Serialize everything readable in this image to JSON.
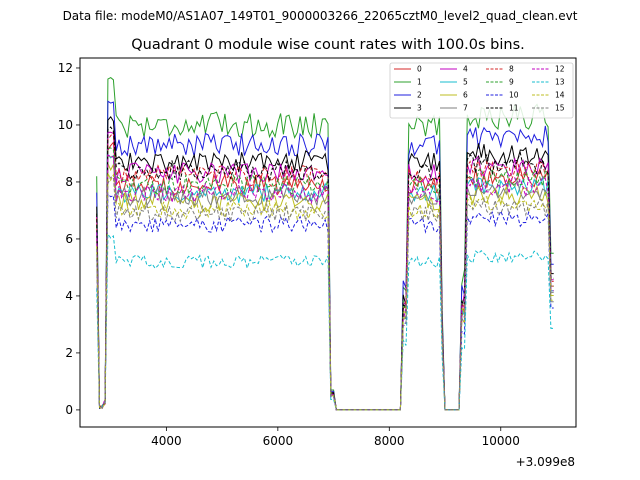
{
  "suptitle": "Data file: modeM0/AS1A07_149T01_9000003266_22065cztM0_level2_quad_clean.evt",
  "chart_data": {
    "type": "line",
    "title": "Quadrant 0 module wise count rates with 100.0s bins.",
    "xlabel": "",
    "ylabel": "",
    "x_offset_label": "+3.099e8",
    "xlim": [
      2450,
      11350
    ],
    "ylim": [
      -0.6,
      12.35
    ],
    "x_ticks": [
      4000,
      6000,
      8000,
      10000
    ],
    "x_tick_labels": [
      "4000",
      "6000",
      "8000",
      "10000"
    ],
    "y_ticks": [
      0,
      2,
      4,
      6,
      8,
      10,
      12
    ],
    "y_tick_labels": [
      "0",
      "2",
      "4",
      "6",
      "8",
      "10",
      "12"
    ],
    "legend_position": "top-right",
    "segments": [
      {
        "x_start": 2750,
        "x_end": 3050
      },
      {
        "x_start": 3050,
        "x_end": 6950
      },
      {
        "x_start": 6950,
        "x_end": 7050
      },
      {
        "x_start": 7050,
        "x_end": 8250
      },
      {
        "x_start": 8250,
        "x_end": 8850
      },
      {
        "x_start": 8850,
        "x_end": 9150
      },
      {
        "x_start": 9150,
        "x_end": 9350
      },
      {
        "x_start": 9350,
        "x_end": 10850
      },
      {
        "x_start": 10850,
        "x_end": 10950
      }
    ],
    "series": [
      {
        "name": "0",
        "color": "#d62728",
        "dash": false,
        "level": 7.9
      },
      {
        "name": "1",
        "color": "#2ca02c",
        "dash": false,
        "level": 10.0
      },
      {
        "name": "2",
        "color": "#1f1fdf",
        "dash": false,
        "level": 9.3
      },
      {
        "name": "3",
        "color": "#000000",
        "dash": false,
        "level": 8.7
      },
      {
        "name": "4",
        "color": "#c000c0",
        "dash": false,
        "level": 8.3
      },
      {
        "name": "5",
        "color": "#17becf",
        "dash": false,
        "level": 7.6
      },
      {
        "name": "6",
        "color": "#bcbd22",
        "dash": false,
        "level": 7.3
      },
      {
        "name": "7",
        "color": "#7f7f7f",
        "dash": false,
        "level": 7.5
      },
      {
        "name": "8",
        "color": "#d62728",
        "dash": true,
        "level": 8.2
      },
      {
        "name": "9",
        "color": "#2ca02c",
        "dash": true,
        "level": 7.9
      },
      {
        "name": "10",
        "color": "#1f1fdf",
        "dash": true,
        "level": 6.5
      },
      {
        "name": "11",
        "color": "#000000",
        "dash": true,
        "level": 8.4
      },
      {
        "name": "12",
        "color": "#c000c0",
        "dash": true,
        "level": 7.6
      },
      {
        "name": "13",
        "color": "#17becf",
        "dash": true,
        "level": 5.2
      },
      {
        "name": "14",
        "color": "#bcbd22",
        "dash": true,
        "level": 7.0
      },
      {
        "name": "15",
        "color": "#7f7f7f",
        "dash": true,
        "level": 6.9
      }
    ]
  }
}
